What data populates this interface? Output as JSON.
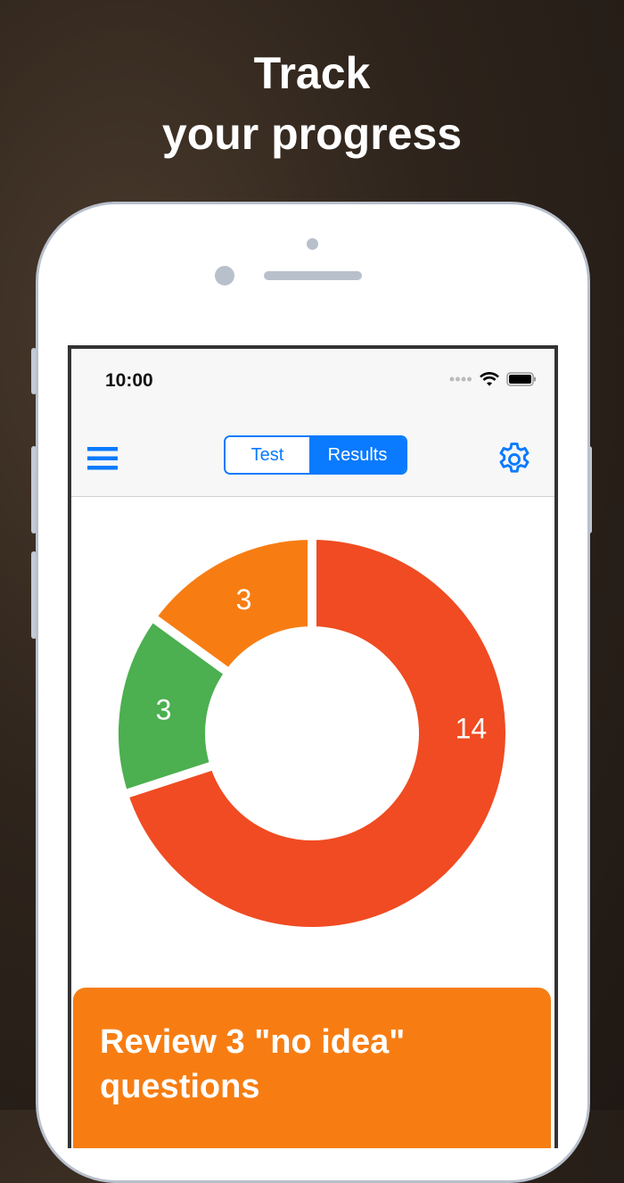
{
  "headline": {
    "line1": "Track",
    "line2": "your progress"
  },
  "status_bar": {
    "time": "10:00"
  },
  "nav": {
    "segments": [
      {
        "label": "Test",
        "selected": false
      },
      {
        "label": "Results",
        "selected": true
      }
    ],
    "menu_icon": "hamburger-icon",
    "settings_icon": "gear-icon",
    "accent": "#0a7aff"
  },
  "chart_data": {
    "type": "pie",
    "variant": "donut",
    "slices": [
      {
        "value": 14,
        "label": "14",
        "color": "#f04b22"
      },
      {
        "value": 3,
        "label": "3",
        "color": "#4caf50"
      },
      {
        "value": 3,
        "label": "3",
        "color": "#f77d13"
      }
    ]
  },
  "review_button": {
    "label": "Review 3 \"no idea\" questions",
    "color": "#f77d13"
  }
}
